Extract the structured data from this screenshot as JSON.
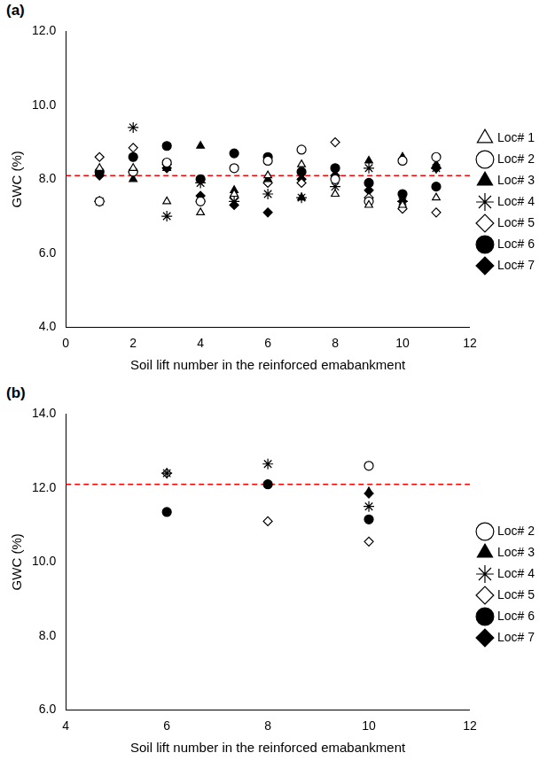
{
  "chart_data": [
    {
      "type": "scatter",
      "title": "(a)",
      "x_label": "Soil lift number in the reinforced emabankment",
      "y_label": "GWC (%)",
      "x": [
        1,
        2,
        3,
        4,
        5,
        6,
        7,
        8,
        9,
        10,
        11
      ],
      "series": [
        {
          "name": "Loc# 1",
          "color": "#000000",
          "marker": "triangle-open",
          "values": [
            8.3,
            8.3,
            7.4,
            7.1,
            7.6,
            8.1,
            8.4,
            7.6,
            7.3,
            7.3,
            7.5
          ]
        },
        {
          "name": "Loc# 2",
          "color": "#000000",
          "marker": "circle-open",
          "values": [
            7.4,
            8.2,
            8.45,
            7.4,
            8.3,
            8.5,
            8.8,
            8.0,
            7.4,
            8.5,
            8.6
          ]
        },
        {
          "name": "Loc# 3",
          "color": "#000000",
          "marker": "triangle",
          "values": [
            8.2,
            8.0,
            8.3,
            8.9,
            7.7,
            8.0,
            7.5,
            8.1,
            8.5,
            8.6,
            8.4
          ]
        },
        {
          "name": "Loc# 4",
          "color": "#000000",
          "marker": "asterisk",
          "values": [
            7.4,
            9.4,
            7.0,
            7.9,
            7.4,
            7.6,
            7.5,
            7.8,
            8.3,
            7.4,
            8.3
          ]
        },
        {
          "name": "Loc# 5",
          "color": "#000000",
          "marker": "diamond-open",
          "values": [
            8.6,
            8.85,
            8.4,
            7.4,
            7.5,
            7.9,
            7.9,
            9.0,
            7.5,
            7.2,
            7.1
          ]
        },
        {
          "name": "Loc# 6",
          "color": "#000000",
          "marker": "circle",
          "values": [
            8.2,
            8.6,
            8.9,
            8.0,
            8.7,
            8.6,
            8.2,
            8.3,
            7.9,
            7.6,
            7.8
          ]
        },
        {
          "name": "Loc# 7",
          "color": "#000000",
          "marker": "diamond",
          "values": [
            8.1,
            8.2,
            8.3,
            7.55,
            7.3,
            7.1,
            8.0,
            8.1,
            7.7,
            7.4,
            8.3
          ]
        }
      ],
      "reference_line": {
        "value": 8.1,
        "color": "#ff0000",
        "line_style": "dashed"
      },
      "xlim": [
        0,
        12
      ],
      "xticks": [
        0,
        2,
        4,
        6,
        8,
        10,
        12
      ],
      "ylim": [
        4,
        12
      ],
      "yticks": [
        {
          "value": 4,
          "label": "4.0"
        },
        {
          "value": 6,
          "label": "6.0"
        },
        {
          "value": 8,
          "label": "8.0"
        },
        {
          "value": 10,
          "label": "10.0"
        },
        {
          "value": 12,
          "label": "12.0"
        }
      ],
      "grid": false,
      "legend": "right"
    },
    {
      "type": "scatter",
      "title": "(b)",
      "x_label": "Soil lift number in the reinforced emabankment",
      "y_label": "GWC (%)",
      "x": [
        6,
        8,
        10
      ],
      "series": [
        {
          "name": "Loc# 2",
          "color": "#000000",
          "marker": "circle-open",
          "values": [
            null,
            null,
            12.6
          ]
        },
        {
          "name": "Loc# 3",
          "color": "#000000",
          "marker": "triangle",
          "values": [
            null,
            null,
            11.9
          ]
        },
        {
          "name": "Loc# 4",
          "color": "#000000",
          "marker": "asterisk",
          "values": [
            12.4,
            12.65,
            11.5
          ]
        },
        {
          "name": "Loc# 5",
          "color": "#000000",
          "marker": "diamond-open",
          "values": [
            12.4,
            11.1,
            10.55
          ]
        },
        {
          "name": "Loc# 6",
          "color": "#000000",
          "marker": "circle",
          "values": [
            11.35,
            12.1,
            11.15
          ]
        },
        {
          "name": "Loc# 7",
          "color": "#000000",
          "marker": "diamond",
          "values": [
            null,
            null,
            11.85
          ]
        }
      ],
      "reference_line": {
        "value": 12.1,
        "color": "#ff0000",
        "line_style": "dashed"
      },
      "xlim": [
        4,
        12
      ],
      "xticks": [
        4,
        6,
        8,
        10,
        12
      ],
      "ylim": [
        6,
        14
      ],
      "yticks": [
        {
          "value": 6,
          "label": "6.0"
        },
        {
          "value": 8,
          "label": "8.0"
        },
        {
          "value": 10,
          "label": "10.0"
        },
        {
          "value": 12,
          "label": "12.0"
        },
        {
          "value": 14,
          "label": "14.0"
        }
      ],
      "grid": false,
      "legend": "right"
    }
  ]
}
